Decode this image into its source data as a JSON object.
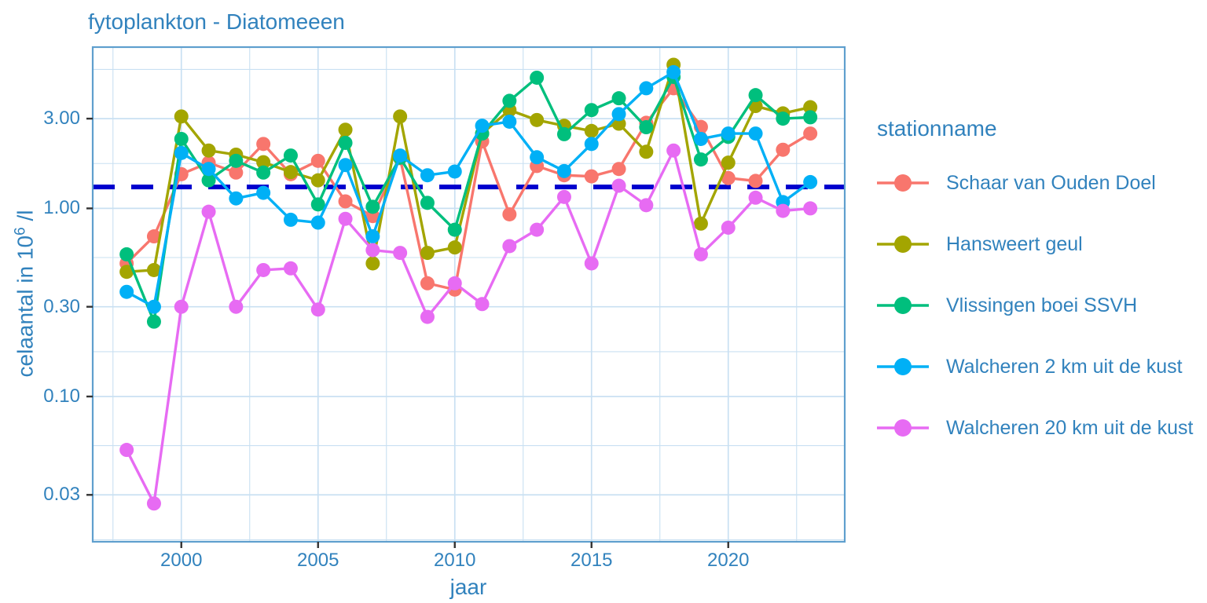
{
  "title": "fytoplankton - Diatomeeen",
  "axes": {
    "x": {
      "label": "jaar"
    },
    "y": {
      "label_main": "celaantal in  10",
      "label_sup": "6",
      "label_tail": " /l"
    }
  },
  "legend": {
    "title": "stationname",
    "items": [
      {
        "label": "Schaar van Ouden Doel",
        "color": "#F8766D"
      },
      {
        "label": "Hansweert geul",
        "color": "#A3A500"
      },
      {
        "label": "Vlissingen boei SSVH",
        "color": "#00BF7D"
      },
      {
        "label": "Walcheren 2 km uit de kust",
        "color": "#00B0F6"
      },
      {
        "label": "Walcheren 20 km uit de kust",
        "color": "#E76BF3"
      }
    ]
  },
  "colors": {
    "text": "#3182bd",
    "grid": "#c9e0f2",
    "panel_border": "#5f9fce",
    "tick_mark": "#333333",
    "reference_line": "#0000CD",
    "background": "#ffffff"
  },
  "chart_data": {
    "type": "line",
    "title": "fytoplankton - Diatomeeen",
    "xlabel": "jaar",
    "ylabel": "celaantal in 10^6 /l",
    "y_scale": "log10",
    "grid": "on",
    "legend_position": "right",
    "x": [
      1998,
      1999,
      2000,
      2001,
      2002,
      2003,
      2004,
      2005,
      2006,
      2007,
      2008,
      2009,
      2010,
      2011,
      2012,
      2013,
      2014,
      2015,
      2016,
      2017,
      2018,
      2019,
      2020,
      2021,
      2022,
      2023
    ],
    "series": [
      {
        "name": "Schaar van Ouden Doel",
        "color": "#F8766D",
        "values": [
          0.51,
          0.71,
          1.52,
          1.75,
          1.55,
          2.2,
          1.52,
          1.79,
          1.09,
          0.91,
          1.85,
          0.4,
          0.37,
          2.27,
          0.93,
          1.68,
          1.5,
          1.48,
          1.62,
          2.85,
          4.35,
          2.71,
          1.45,
          1.4,
          2.05,
          2.5
        ]
      },
      {
        "name": "Hansweert geul",
        "color": "#A3A500",
        "values": [
          0.46,
          0.47,
          3.08,
          2.03,
          1.93,
          1.76,
          1.56,
          1.41,
          2.62,
          0.51,
          3.08,
          0.58,
          0.62,
          2.5,
          3.33,
          2.95,
          2.75,
          2.58,
          2.82,
          2.0,
          5.8,
          0.83,
          1.75,
          3.5,
          3.2,
          3.45
        ]
      },
      {
        "name": "Vlissingen boei SSVH",
        "color": "#00BF7D",
        "values": [
          0.57,
          0.25,
          2.34,
          1.41,
          1.79,
          1.55,
          1.91,
          1.05,
          2.23,
          1.02,
          1.86,
          1.07,
          0.77,
          2.5,
          3.73,
          4.95,
          2.48,
          3.33,
          3.85,
          2.7,
          5.0,
          1.82,
          2.4,
          4.0,
          3.0,
          3.05
        ]
      },
      {
        "name": "Walcheren 2 km uit de kust",
        "color": "#00B0F6",
        "values": [
          0.36,
          0.3,
          1.97,
          1.62,
          1.13,
          1.21,
          0.87,
          0.84,
          1.7,
          0.71,
          1.91,
          1.5,
          1.57,
          2.75,
          2.89,
          1.87,
          1.58,
          2.2,
          3.17,
          4.35,
          5.3,
          2.34,
          2.5,
          2.5,
          1.08,
          1.38
        ]
      },
      {
        "name": "Walcheren 20 km uit de kust",
        "color": "#E76BF3",
        "values": [
          0.052,
          0.027,
          0.3,
          0.96,
          0.3,
          0.47,
          0.48,
          0.29,
          0.88,
          0.6,
          0.58,
          0.265,
          0.4,
          0.31,
          0.63,
          0.77,
          1.15,
          0.51,
          1.32,
          1.04,
          2.03,
          0.57,
          0.79,
          1.14,
          0.97,
          1.0
        ]
      }
    ],
    "reference_line": {
      "value": 1.3,
      "style": "dashed"
    },
    "y_ticks": [
      {
        "v": 3,
        "label": "3.00"
      },
      {
        "v": 1,
        "label": "1.00"
      },
      {
        "v": 0.3,
        "label": "0.30"
      },
      {
        "v": 0.1,
        "label": "0.10"
      },
      {
        "v": 0.03,
        "label": "0.03"
      }
    ],
    "y_minor": [
      5.477,
      1.732,
      0.548,
      0.173,
      0.0548,
      0.0173
    ],
    "x_ticks": [
      2000,
      2005,
      2010,
      2015,
      2020
    ],
    "x_minor": [
      1997.5,
      2002.5,
      2007.5,
      2012.5,
      2017.5,
      2022.5
    ],
    "xlim": [
      1996.76,
      2024.26
    ],
    "ylim": [
      0.0169,
      7.2
    ]
  }
}
